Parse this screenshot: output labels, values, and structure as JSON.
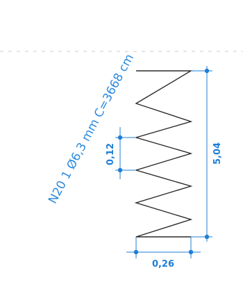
{
  "label": {
    "rebar_spec": "N20 1 Ø6,3 mm C=3668 cm"
  },
  "dimensions": {
    "total_height": "5,04",
    "spacing": "0,12",
    "width": "0,26"
  },
  "colors": {
    "dimension": "#1e7fd6",
    "label": "#2b8be0",
    "spring": "#2a2a2a",
    "reference_line": "#c8c8c8"
  }
}
